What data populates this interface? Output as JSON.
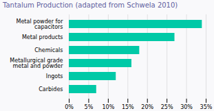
{
  "chart_data": {
    "type": "bar",
    "orientation": "horizontal",
    "title": "Tantalum Production (adapted from Schwela 2010)",
    "categories": [
      "Carbides",
      "Ingots",
      "Metallurgical grade\nmetal and powder",
      "Chemicals",
      "Metal products",
      "Metal powder for\ncapacitors"
    ],
    "values": [
      7,
      12,
      16,
      18,
      27,
      34
    ],
    "color": "#00c9a7",
    "xlim": [
      0,
      35
    ],
    "xticks": [
      {
        "value": 0,
        "label": "0%"
      },
      {
        "value": 5,
        "label": "5%"
      },
      {
        "value": 10,
        "label": "10%"
      },
      {
        "value": 15,
        "label": "15%"
      },
      {
        "value": 20,
        "label": "20%"
      },
      {
        "value": 25,
        "label": "25%"
      },
      {
        "value": 30,
        "label": "30%"
      },
      {
        "value": 35,
        "label": "35%"
      }
    ],
    "grid": true
  }
}
